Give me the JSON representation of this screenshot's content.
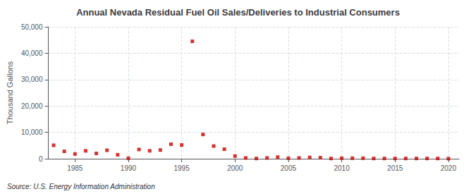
{
  "chart_data": {
    "type": "scatter",
    "title": "Annual Nevada Residual Fuel Oil Sales/Deliveries to Industrial Consumers",
    "ylabel": "Thousand Gallons",
    "annotation": "Source: U.S. Energy Information Administration",
    "color": "#cc0000",
    "marker": "square",
    "grid": true,
    "xlim": [
      1982.5,
      2021
    ],
    "ylim": [
      0,
      50000
    ],
    "xticks": [
      1985,
      1990,
      1995,
      2000,
      2005,
      2010,
      2015,
      2020
    ],
    "yticks": [
      0,
      {
        "value": 10000,
        "label": "10,000"
      },
      {
        "value": 20000,
        "label": "20,000"
      },
      {
        "value": 30000,
        "label": "30,000"
      },
      {
        "value": 40000,
        "label": "40,000"
      },
      {
        "value": 50000,
        "label": "50,000"
      }
    ],
    "x": [
      1983,
      1984,
      1985,
      1986,
      1987,
      1988,
      1989,
      1990,
      1991,
      1992,
      1993,
      1994,
      1995,
      1996,
      1997,
      1998,
      1999,
      2000,
      2001,
      2002,
      2003,
      2004,
      2005,
      2006,
      2007,
      2008,
      2009,
      2010,
      2011,
      2012,
      2013,
      2014,
      2015,
      2016,
      2017,
      2018,
      2019,
      2020
    ],
    "values": [
      5100,
      2800,
      1800,
      3000,
      2000,
      3200,
      1500,
      200,
      3500,
      3000,
      3300,
      5500,
      5200,
      44500,
      9200,
      4800,
      3600,
      1000,
      300,
      100,
      300,
      600,
      200,
      300,
      500,
      400,
      100,
      200,
      200,
      200,
      100,
      100,
      100,
      100,
      100,
      100,
      100,
      50
    ]
  }
}
